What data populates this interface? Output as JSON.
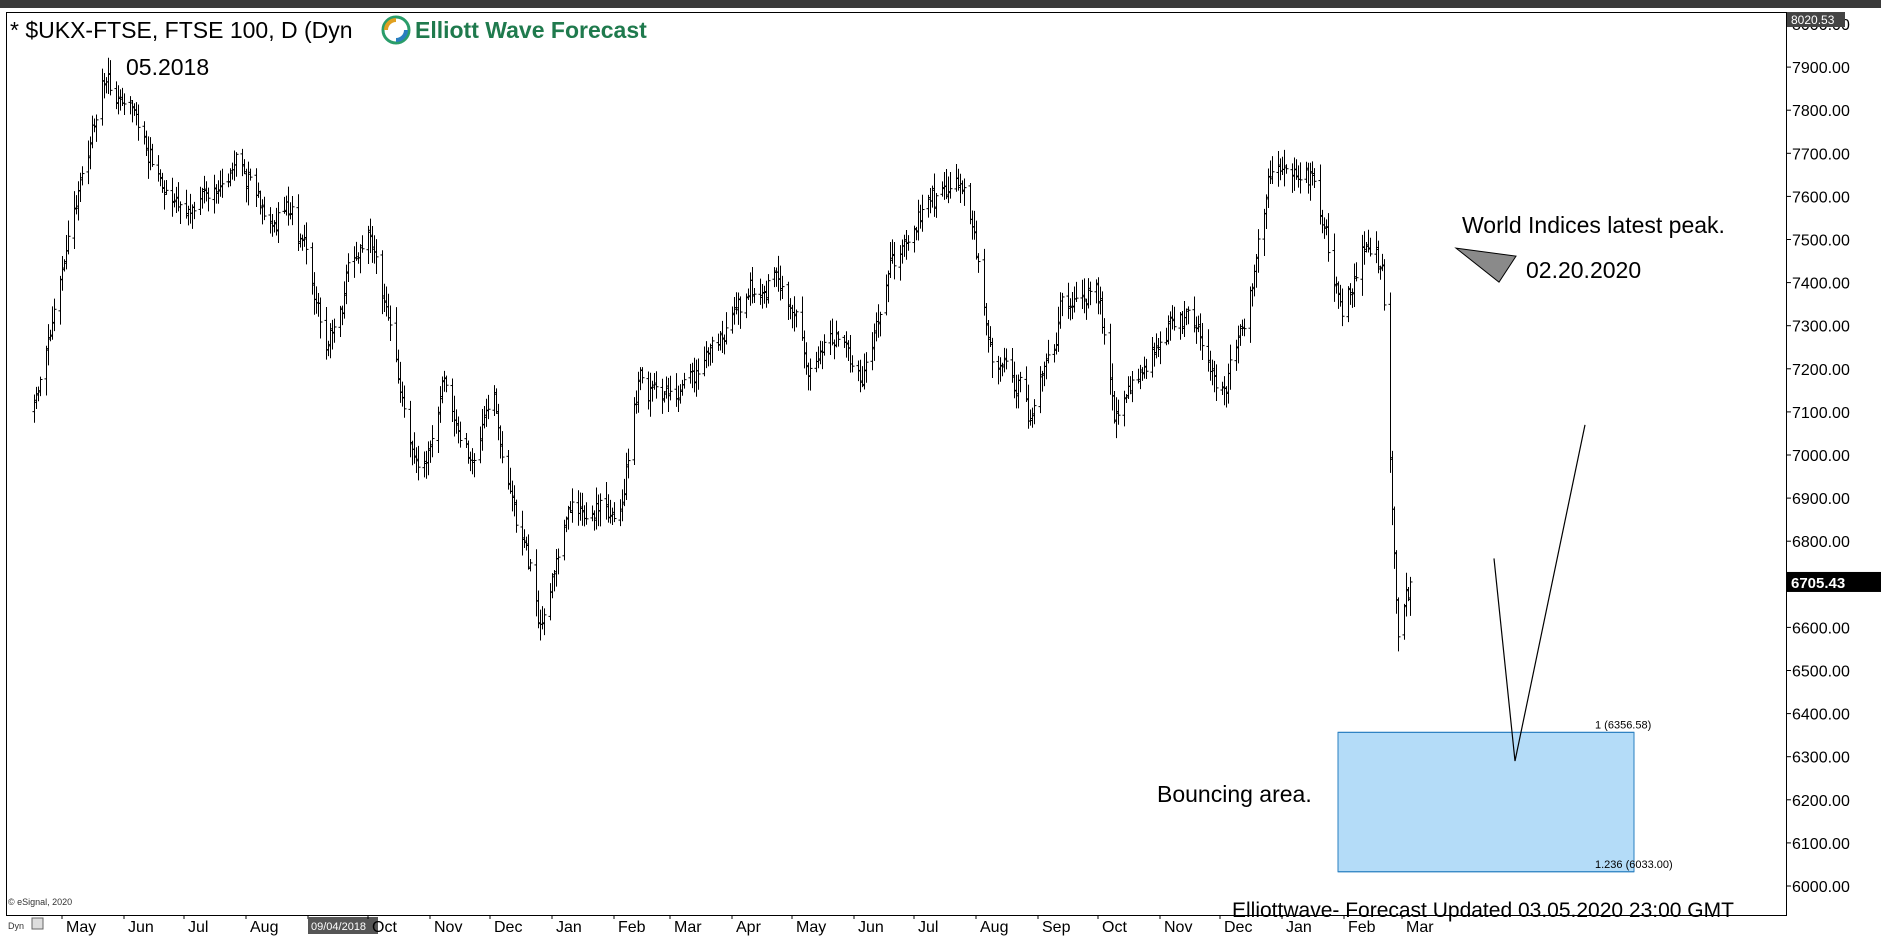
{
  "title": "* $UKX-FTSE, FTSE 100, D (Dyn",
  "logo_text": "Elliott Wave Forecast",
  "credit": "© eSignal, 2020",
  "footer": "Elliottwave- Forecast  Updated 03.05.2020 23:00 GMT",
  "dyn_label": "Dyn",
  "colors": {
    "box_fill": "#b4dcf8",
    "box_stroke": "#2a7fc0",
    "price_tag": "#000000",
    "logo_green": "#1f7a4d"
  },
  "chart_data": {
    "type": "ohlc",
    "ylim": [
      6000,
      8020
    ],
    "y_ticks": [
      "8000.00",
      "7900.00",
      "7800.00",
      "7700.00",
      "7600.00",
      "7500.00",
      "7400.00",
      "7300.00",
      "7200.00",
      "7100.00",
      "7000.00",
      "6900.00",
      "6800.00",
      "6700.00",
      "6600.00",
      "6500.00",
      "6400.00",
      "6300.00",
      "6200.00",
      "6100.00",
      "6000.00"
    ],
    "x_labels": [
      "May",
      "Jun",
      "Jul",
      "Aug",
      "09/04/2018",
      "Oct",
      "Nov",
      "Dec",
      "Jan",
      "Feb",
      "Mar",
      "Apr",
      "May",
      "Jun",
      "Jul",
      "Aug",
      "Sep",
      "Oct",
      "Nov",
      "Dec",
      "Jan",
      "Feb",
      "Mar"
    ],
    "highlighted_x_label": "09/04/2018",
    "top_price_label": "8020.53",
    "last_price": 6705.43,
    "last_price_label": "6705.43",
    "anchors": [
      {
        "date": "2018-04-17",
        "price": 7100
      },
      {
        "date": "2018-05-22",
        "price": 7880
      },
      {
        "date": "2018-06-12",
        "price": 7720
      },
      {
        "date": "2018-07-05",
        "price": 7560
      },
      {
        "date": "2018-07-27",
        "price": 7700
      },
      {
        "date": "2018-08-16",
        "price": 7550
      },
      {
        "date": "2018-08-24",
        "price": 7590
      },
      {
        "date": "2018-09-10",
        "price": 7270
      },
      {
        "date": "2018-10-01",
        "price": 7520
      },
      {
        "date": "2018-10-26",
        "price": 6950
      },
      {
        "date": "2018-11-08",
        "price": 7140
      },
      {
        "date": "2018-11-20",
        "price": 7000
      },
      {
        "date": "2018-12-03",
        "price": 7080
      },
      {
        "date": "2018-12-14",
        "price": 6870
      },
      {
        "date": "2018-12-27",
        "price": 6600
      },
      {
        "date": "2019-01-11",
        "price": 6900
      },
      {
        "date": "2019-02-04",
        "price": 6860
      },
      {
        "date": "2019-02-13",
        "price": 7180
      },
      {
        "date": "2019-02-28",
        "price": 7100
      },
      {
        "date": "2019-03-21",
        "price": 7250
      },
      {
        "date": "2019-04-23",
        "price": 7450
      },
      {
        "date": "2019-05-10",
        "price": 7200
      },
      {
        "date": "2019-05-24",
        "price": 7280
      },
      {
        "date": "2019-06-05",
        "price": 7200
      },
      {
        "date": "2019-06-20",
        "price": 7420
      },
      {
        "date": "2019-07-04",
        "price": 7550
      },
      {
        "date": "2019-07-26",
        "price": 7640
      },
      {
        "date": "2019-08-08",
        "price": 7250
      },
      {
        "date": "2019-08-27",
        "price": 7100
      },
      {
        "date": "2019-09-13",
        "price": 7350
      },
      {
        "date": "2019-09-30",
        "price": 7400
      },
      {
        "date": "2019-10-10",
        "price": 7100
      },
      {
        "date": "2019-10-18",
        "price": 7150
      },
      {
        "date": "2019-11-11",
        "price": 7350
      },
      {
        "date": "2019-12-03",
        "price": 7160
      },
      {
        "date": "2019-12-12",
        "price": 7300
      },
      {
        "date": "2019-12-27",
        "price": 7640
      },
      {
        "date": "2020-01-17",
        "price": 7640
      },
      {
        "date": "2020-01-31",
        "price": 7300
      },
      {
        "date": "2020-02-10",
        "price": 7460
      },
      {
        "date": "2020-02-20",
        "price": 7440
      },
      {
        "date": "2020-02-28",
        "price": 6580
      },
      {
        "date": "2020-03-05",
        "price": 6705
      }
    ],
    "projection": [
      {
        "date": "2020-03-06",
        "price": 6760
      },
      {
        "date": "2020-03-16",
        "price": 6290
      },
      {
        "date": "2020-04-02",
        "price": 7070
      }
    ],
    "fib_levels": [
      {
        "label": "1 (6356.58)",
        "price": 6356.58
      },
      {
        "label": "1.236 (6033.00)",
        "price": 6033.0
      }
    ],
    "annotations": {
      "peak_2018": "05.2018",
      "world_peak": "World Indices latest peak.",
      "world_peak_date": "02.20.2020",
      "bounce": "Bouncing area."
    }
  }
}
